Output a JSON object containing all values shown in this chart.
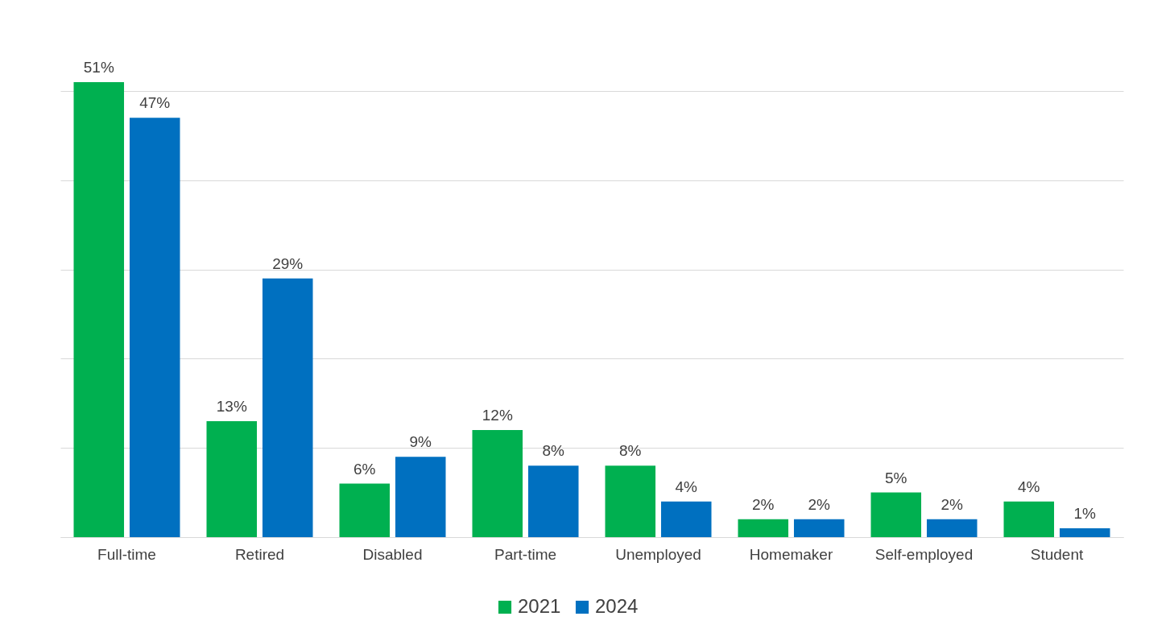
{
  "chart_data": {
    "type": "bar",
    "categories": [
      "Full-time",
      "Retired",
      "Disabled",
      "Part-time",
      "Unemployed",
      "Homemaker",
      "Self-employed",
      "Student"
    ],
    "series": [
      {
        "name": "2021",
        "color": "#00b050",
        "values": [
          51,
          13,
          6,
          12,
          8,
          2,
          5,
          4
        ],
        "value_labels": [
          "51%",
          "13%",
          "6%",
          "12%",
          "8%",
          "2%",
          "5%",
          "4%"
        ]
      },
      {
        "name": "2024",
        "color": "#0070c0",
        "values": [
          47,
          29,
          9,
          8,
          4,
          2,
          2,
          1
        ],
        "value_labels": [
          "47%",
          "29%",
          "9%",
          "8%",
          "4%",
          "2%",
          "2%",
          "1%"
        ]
      }
    ],
    "yticks": [
      {
        "value": 0,
        "label": null
      },
      {
        "value": 10,
        "label": null
      },
      {
        "value": 20,
        "label": null
      },
      {
        "value": 30,
        "label": null
      },
      {
        "value": 40,
        "label": null
      },
      {
        "value": 50,
        "label": null
      }
    ],
    "tick_labels": "x",
    "grid": "y",
    "legend": "bottom"
  }
}
